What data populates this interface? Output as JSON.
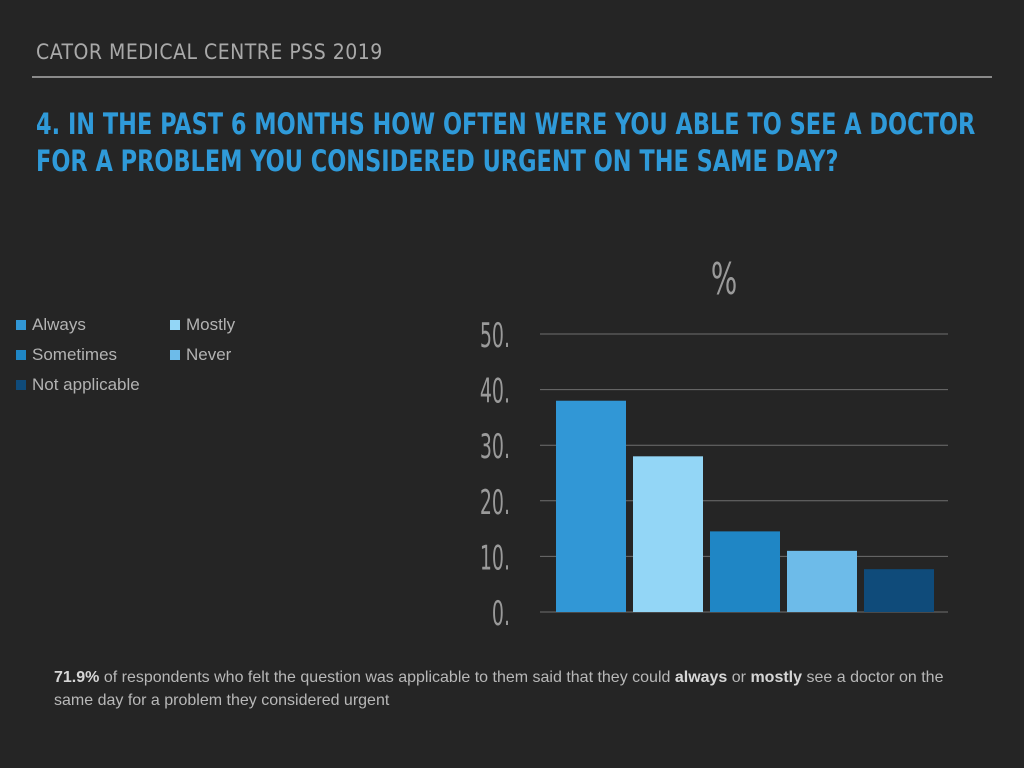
{
  "header": {
    "brand": "CATOR MEDICAL CENTRE PSS 2019",
    "title": "4. IN THE PAST 6 MONTHS HOW OFTEN WERE YOU ABLE TO SEE A DOCTOR FOR A PROBLEM YOU CONSIDERED URGENT ON THE SAME DAY?"
  },
  "chart_data": {
    "type": "bar",
    "title": "%",
    "xlabel": "",
    "ylabel": "",
    "categories": [
      "Always",
      "Mostly",
      "Sometimes",
      "Never",
      "Not applicable"
    ],
    "values": [
      38,
      28,
      14.5,
      11,
      7.7
    ],
    "colors": [
      "#3197d6",
      "#93d6f6",
      "#1f86c5",
      "#6dbbe9",
      "#0f4b7a"
    ],
    "ylim": [
      0,
      50
    ],
    "yticks": [
      "0.",
      "10.",
      "20.",
      "30.",
      "40.",
      "50."
    ],
    "grid": true,
    "legend_position": "left"
  },
  "footnote": {
    "percent": "71.9%",
    "text_a": " of respondents who felt the question was applicable to them said that they could ",
    "bold_always": "always",
    "text_or": " or ",
    "bold_mostly": "mostly",
    "text_b": " see a doctor on the same day for a problem they considered urgent"
  },
  "colors": {
    "background": "#252525",
    "title": "#2f9ad9",
    "gridline": "#6e6e6e",
    "tick_text": "#9a9a9a"
  }
}
